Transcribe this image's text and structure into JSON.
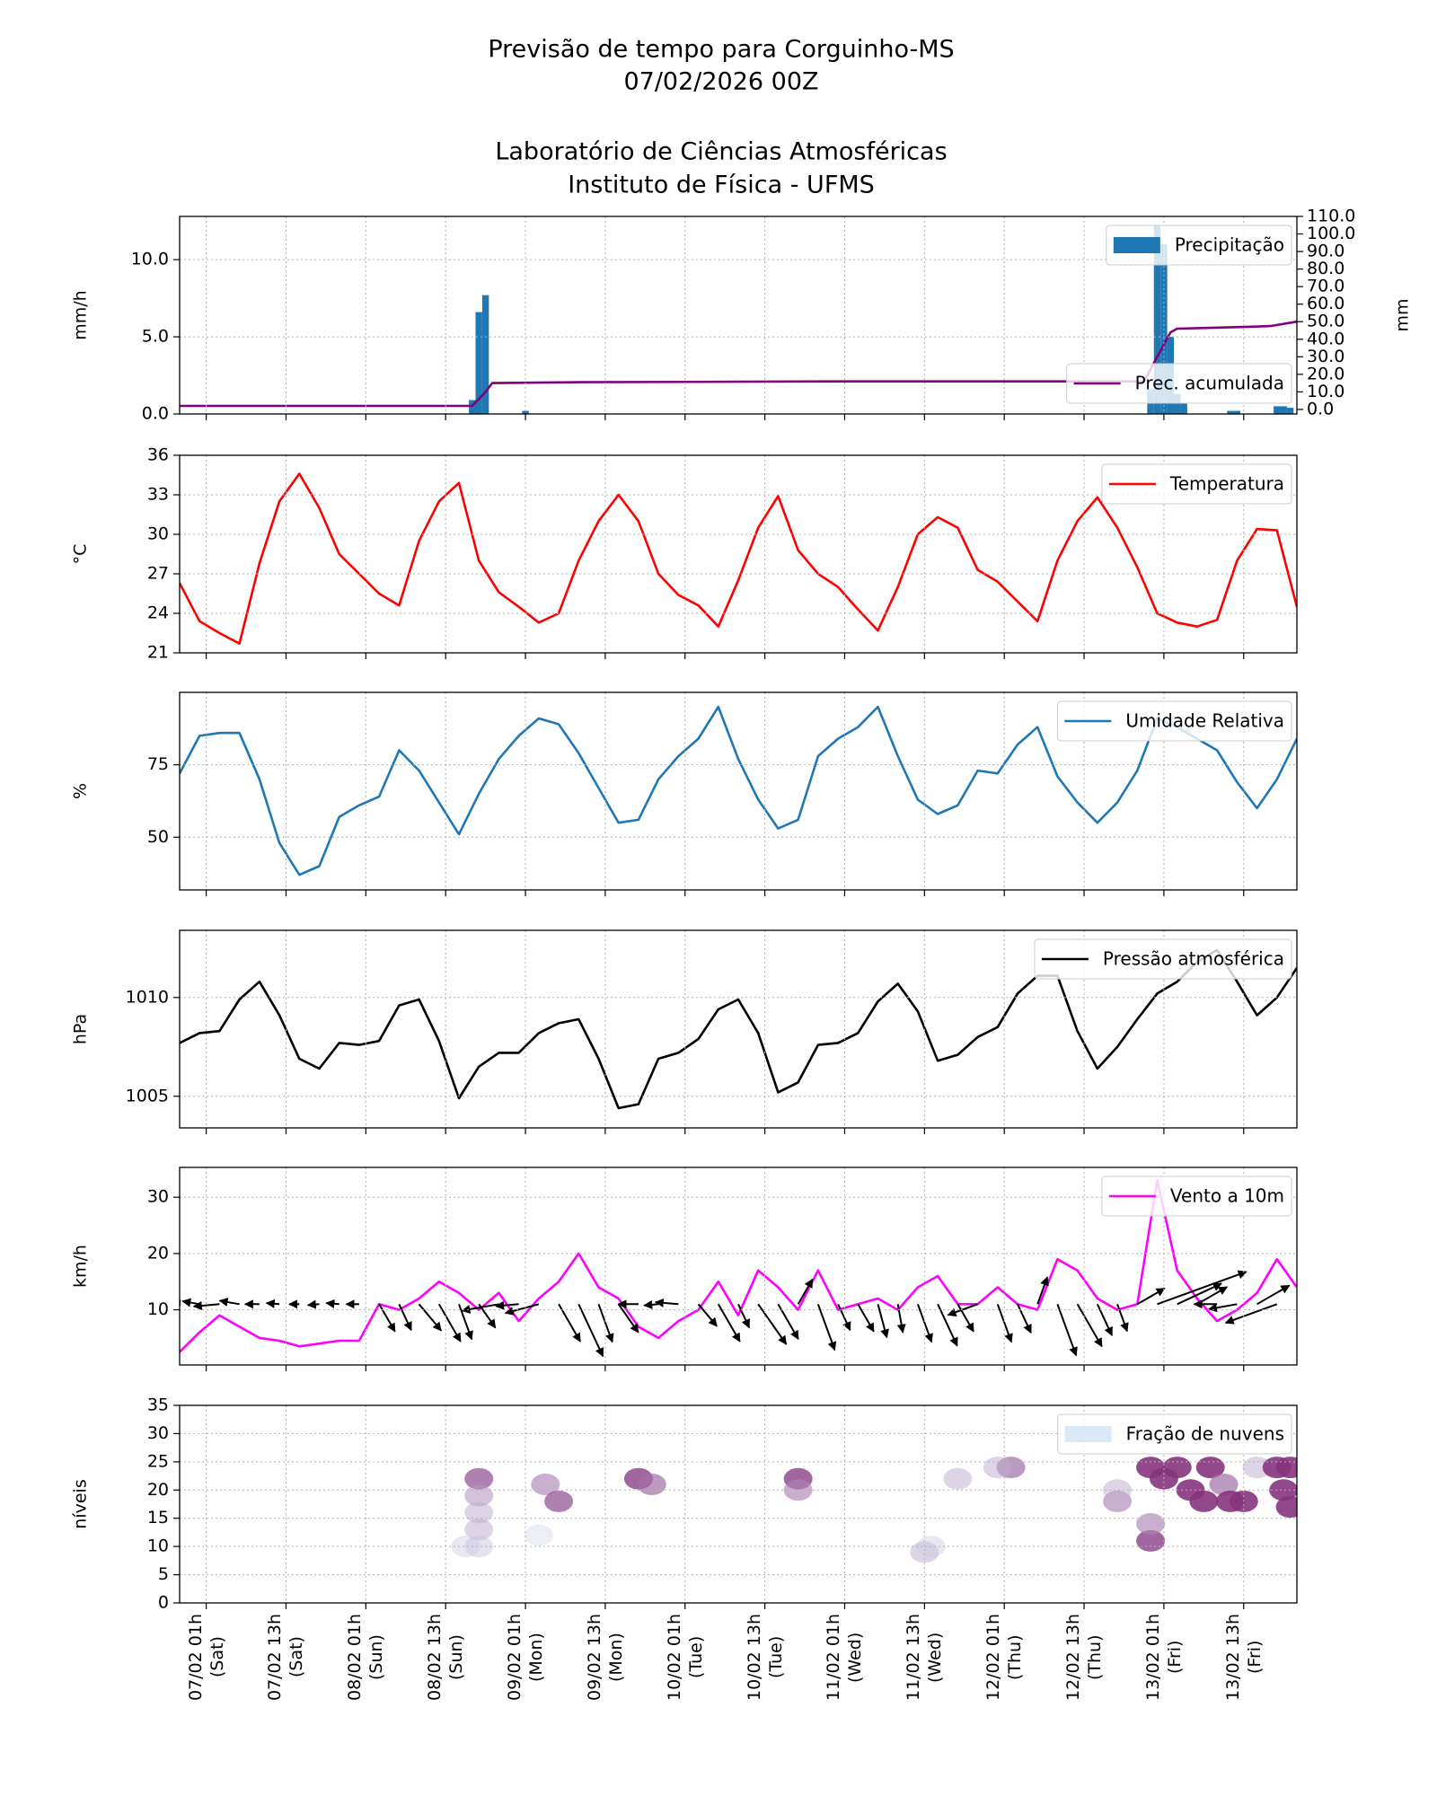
{
  "title": [
    "Previsão de tempo para Corguinho-MS",
    "07/02/2026 00Z",
    "Laboratório de Ciências Atmosféricas",
    "Instituto de Física - UFMS"
  ],
  "chart_data": [
    {
      "type": "bar",
      "ylabel": "mm/h",
      "y2label": "mm",
      "xlim": [
        0,
        168
      ],
      "xticks": [
        4,
        16,
        28,
        40,
        52,
        64,
        76,
        88,
        100,
        112,
        124,
        136,
        148,
        160
      ],
      "ylim": [
        0,
        12.8
      ],
      "yticks": [
        {
          "value": 0,
          "label": "0.0"
        },
        {
          "value": 5,
          "label": "5.0"
        },
        {
          "value": 10,
          "label": "10.0"
        }
      ],
      "y2lim": [
        -2.6,
        110
      ],
      "y2ticks": [
        {
          "value": 0,
          "label": "0.0"
        },
        {
          "value": 10,
          "label": "10.0"
        },
        {
          "value": 20,
          "label": "20.0"
        },
        {
          "value": 30,
          "label": "30.0"
        },
        {
          "value": 40,
          "label": "40.0"
        },
        {
          "value": 50,
          "label": "50.0"
        },
        {
          "value": 60,
          "label": "60.0"
        },
        {
          "value": 70,
          "label": "70.0"
        },
        {
          "value": 80,
          "label": "80.0"
        },
        {
          "value": 90,
          "label": "90.0"
        },
        {
          "value": 100,
          "label": "100.0"
        },
        {
          "value": 110,
          "label": "110.0"
        }
      ],
      "grid": true,
      "legend": "upper right",
      "series": [
        {
          "name": "Precipitação",
          "type": "bar",
          "color": "#1f77b4",
          "x": [
            44,
            45,
            46,
            52,
            146,
            147,
            148,
            149,
            150,
            151,
            158,
            159,
            165,
            166,
            167
          ],
          "values": [
            0.9,
            6.6,
            7.7,
            0.2,
            1.6,
            12.2,
            11.0,
            5.0,
            1.3,
            0.7,
            0.2,
            0.2,
            0.5,
            0.5,
            0.4
          ]
        },
        {
          "name": "Prec. acumulada",
          "type": "line",
          "axis": "y2",
          "legend": "lower right",
          "color": "#800080",
          "x": [
            0,
            44,
            46,
            47,
            60,
            100,
            145,
            147,
            149,
            150,
            155,
            160,
            164,
            168
          ],
          "values": [
            2,
            2,
            10,
            15,
            15.5,
            16,
            16,
            30,
            44,
            46,
            46.5,
            47,
            47.5,
            50
          ]
        }
      ]
    },
    {
      "type": "line",
      "ylabel": "°C",
      "xlim": [
        0,
        168
      ],
      "xticks": [
        4,
        16,
        28,
        40,
        52,
        64,
        76,
        88,
        100,
        112,
        124,
        136,
        148,
        160
      ],
      "ylim": [
        21,
        36
      ],
      "yticks": [
        21,
        24,
        27,
        30,
        33,
        36
      ],
      "grid": true,
      "legend": "upper right",
      "series": [
        {
          "name": "Temperatura",
          "color": "#ff0000",
          "x": [
            0,
            3,
            6,
            9,
            12,
            15,
            18,
            21,
            24,
            27,
            30,
            33,
            36,
            39,
            42,
            45,
            48,
            51,
            54,
            57,
            60,
            63,
            66,
            69,
            72,
            75,
            78,
            81,
            84,
            87,
            90,
            93,
            96,
            99,
            102,
            105,
            108,
            111,
            114,
            117,
            120,
            123,
            126,
            129,
            132,
            135,
            138,
            141,
            144,
            147,
            150,
            153,
            156,
            159,
            162,
            165,
            168
          ],
          "values": [
            26.3,
            23.4,
            22.5,
            21.7,
            27.8,
            32.5,
            34.6,
            32.0,
            28.5,
            27.0,
            25.5,
            24.6,
            29.5,
            32.5,
            33.9,
            28.0,
            25.6,
            24.5,
            23.3,
            24.0,
            28.0,
            31.0,
            33.0,
            31.0,
            27.0,
            25.4,
            24.6,
            23.0,
            26.5,
            30.5,
            32.9,
            28.8,
            27.0,
            26.0,
            24.3,
            22.7,
            26.0,
            30.0,
            31.3,
            30.5,
            27.3,
            26.4,
            24.9,
            23.4,
            28.0,
            31.0,
            32.8,
            30.5,
            27.5,
            24.0,
            23.3,
            23.0,
            23.5,
            28.0,
            30.4,
            30.3,
            24.5
          ]
        }
      ]
    },
    {
      "type": "line",
      "ylabel": "%",
      "xlim": [
        0,
        168
      ],
      "xticks": [
        4,
        16,
        28,
        40,
        52,
        64,
        76,
        88,
        100,
        112,
        124,
        136,
        148,
        160
      ],
      "ylim": [
        31.8,
        100
      ],
      "yticks": [
        50,
        75
      ],
      "grid": true,
      "legend": "upper right",
      "series": [
        {
          "name": "Umidade Relativa",
          "color": "#1f77b4",
          "x": [
            0,
            3,
            6,
            9,
            12,
            15,
            18,
            21,
            24,
            27,
            30,
            33,
            36,
            39,
            42,
            45,
            48,
            51,
            54,
            57,
            60,
            63,
            66,
            69,
            72,
            75,
            78,
            81,
            84,
            87,
            90,
            93,
            96,
            99,
            102,
            105,
            108,
            111,
            114,
            117,
            120,
            123,
            126,
            129,
            132,
            135,
            138,
            141,
            144,
            147,
            150,
            153,
            156,
            159,
            162,
            165,
            168
          ],
          "values": [
            72,
            85,
            86,
            86,
            70,
            48,
            37,
            40,
            57,
            61,
            64,
            80,
            73,
            62,
            51,
            65,
            77,
            85,
            91,
            89,
            79,
            67,
            55,
            56,
            70,
            78,
            84,
            95,
            77,
            63,
            53,
            56,
            78,
            84,
            88,
            95,
            78,
            63,
            58,
            61,
            73,
            72,
            82,
            88,
            71,
            62,
            55,
            62,
            73,
            91,
            88,
            84,
            80,
            69,
            60,
            70,
            84
          ]
        }
      ]
    },
    {
      "type": "line",
      "ylabel": "hPa",
      "xlim": [
        0,
        168
      ],
      "xticks": [
        4,
        16,
        28,
        40,
        52,
        64,
        76,
        88,
        100,
        112,
        124,
        136,
        148,
        160
      ],
      "ylim": [
        1003.4,
        1013.4
      ],
      "yticks": [
        1005,
        1010
      ],
      "grid": true,
      "legend": "upper right",
      "series": [
        {
          "name": "Pressão atmosférica",
          "color": "#000000",
          "x": [
            0,
            3,
            6,
            9,
            12,
            15,
            18,
            21,
            24,
            27,
            30,
            33,
            36,
            39,
            42,
            45,
            48,
            51,
            54,
            57,
            60,
            63,
            66,
            69,
            72,
            75,
            78,
            81,
            84,
            87,
            90,
            93,
            96,
            99,
            102,
            105,
            108,
            111,
            114,
            117,
            120,
            123,
            126,
            129,
            132,
            135,
            138,
            141,
            144,
            147,
            150,
            153,
            156,
            159,
            162,
            165,
            168
          ],
          "values": [
            1007.7,
            1008.2,
            1008.3,
            1009.9,
            1010.8,
            1009.1,
            1006.9,
            1006.4,
            1007.7,
            1007.6,
            1007.8,
            1009.6,
            1009.9,
            1007.8,
            1004.9,
            1006.5,
            1007.2,
            1007.2,
            1008.2,
            1008.7,
            1008.9,
            1006.9,
            1004.4,
            1004.6,
            1006.9,
            1007.2,
            1007.9,
            1009.4,
            1009.9,
            1008.2,
            1005.2,
            1005.7,
            1007.6,
            1007.7,
            1008.2,
            1009.8,
            1010.7,
            1009.3,
            1006.8,
            1007.1,
            1008.0,
            1008.5,
            1010.2,
            1011.1,
            1011.1,
            1008.3,
            1006.4,
            1007.5,
            1008.9,
            1010.2,
            1010.8,
            1011.8,
            1012.4,
            1010.8,
            1009.1,
            1010.0,
            1011.5
          ]
        }
      ]
    },
    {
      "type": "line",
      "ylabel": "km/h",
      "xlim": [
        0,
        168
      ],
      "xticks": [
        4,
        16,
        28,
        40,
        52,
        64,
        76,
        88,
        100,
        112,
        124,
        136,
        148,
        160
      ],
      "ylim": [
        0.2,
        35.3
      ],
      "yticks": [
        10,
        20,
        30
      ],
      "grid": true,
      "legend": "upper right",
      "series": [
        {
          "name": "Vento a 10m",
          "color": "#ff00ff",
          "x": [
            0,
            3,
            6,
            9,
            12,
            15,
            18,
            21,
            24,
            27,
            30,
            33,
            36,
            39,
            42,
            45,
            48,
            51,
            54,
            57,
            60,
            63,
            66,
            69,
            72,
            75,
            78,
            81,
            84,
            87,
            90,
            93,
            96,
            99,
            102,
            105,
            108,
            111,
            114,
            117,
            120,
            123,
            126,
            129,
            132,
            135,
            138,
            141,
            144,
            147,
            150,
            153,
            156,
            159,
            162,
            165,
            168
          ],
          "values": [
            2.5,
            6,
            9,
            7,
            5,
            4.5,
            3.5,
            4,
            4.5,
            4.5,
            11,
            10,
            12,
            15,
            13,
            10,
            13,
            8,
            12,
            15,
            20,
            14,
            12,
            7,
            5,
            8,
            10,
            15,
            9,
            17,
            14,
            10,
            17,
            10,
            11,
            12,
            10,
            14,
            16,
            11,
            11,
            14,
            11,
            10,
            19,
            17,
            12,
            10,
            11,
            33,
            17,
            12,
            8,
            10,
            13,
            19,
            14
          ],
          "direction": [
            175,
            170,
            185,
            170,
            180,
            175,
            180,
            185,
            175,
            180,
            300,
            295,
            310,
            300,
            290,
            305,
            190,
            185,
            195,
            300,
            295,
            290,
            305,
            180,
            185,
            175,
            310,
            300,
            295,
            305,
            300,
            60,
            290,
            295,
            300,
            285,
            280,
            290,
            295,
            300,
            200,
            290,
            295,
            70,
            290,
            300,
            295,
            290,
            30,
            20,
            25,
            30,
            180,
            190,
            30,
            200,
            20
          ]
        }
      ]
    },
    {
      "type": "contour",
      "ylabel": "níveis",
      "xlim": [
        0,
        168
      ],
      "xticks": [
        {
          "value": 4,
          "label": "07/02 01h\n(Sat)"
        },
        {
          "value": 16,
          "label": "07/02 13h\n(Sat)"
        },
        {
          "value": 28,
          "label": "08/02 01h\n(Sun)"
        },
        {
          "value": 40,
          "label": "08/02 13h\n(Sun)"
        },
        {
          "value": 52,
          "label": "09/02 01h\n(Mon)"
        },
        {
          "value": 64,
          "label": "09/02 13h\n(Mon)"
        },
        {
          "value": 76,
          "label": "10/02 01h\n(Tue)"
        },
        {
          "value": 88,
          "label": "10/02 13h\n(Tue)"
        },
        {
          "value": 100,
          "label": "11/02 01h\n(Wed)"
        },
        {
          "value": 112,
          "label": "11/02 13h\n(Wed)"
        },
        {
          "value": 124,
          "label": "12/02 01h\n(Thu)"
        },
        {
          "value": 136,
          "label": "12/02 13h\n(Thu)"
        },
        {
          "value": 148,
          "label": "13/02 01h\n(Fri)"
        },
        {
          "value": 160,
          "label": "13/02 13h\n(Fri)"
        }
      ],
      "ylim": [
        0,
        35
      ],
      "yticks": [
        0,
        5,
        10,
        15,
        20,
        25,
        30,
        35
      ],
      "grid": true,
      "legend": "upper right",
      "series": [
        {
          "name": "Fração de nuvens",
          "color": "#dbe8f5",
          "x": [
            45,
            45,
            45,
            45,
            45,
            43,
            55,
            57,
            54,
            69,
            71,
            93,
            93,
            112,
            113,
            117,
            125,
            123,
            141,
            141,
            146,
            146,
            146,
            148,
            150,
            152,
            154,
            155,
            157,
            158,
            160,
            162,
            165,
            166,
            167,
            167
          ],
          "y": [
            22,
            19,
            16,
            13,
            10,
            10,
            21,
            18,
            12,
            22,
            21,
            22,
            20,
            9,
            10,
            22,
            24,
            24,
            18,
            20,
            11,
            14,
            24,
            22,
            24,
            20,
            18,
            24,
            21,
            18,
            18,
            24,
            24,
            20,
            17,
            24
          ],
          "values": [
            0.7,
            0.4,
            0.3,
            0.3,
            0.2,
            0.15,
            0.5,
            0.7,
            0.1,
            0.8,
            0.6,
            0.8,
            0.5,
            0.3,
            0.15,
            0.3,
            0.6,
            0.3,
            0.5,
            0.3,
            0.8,
            0.5,
            0.9,
            0.9,
            0.9,
            0.9,
            0.9,
            0.9,
            0.6,
            0.9,
            0.9,
            0.3,
            0.9,
            0.9,
            0.9,
            0.9
          ]
        }
      ]
    }
  ]
}
